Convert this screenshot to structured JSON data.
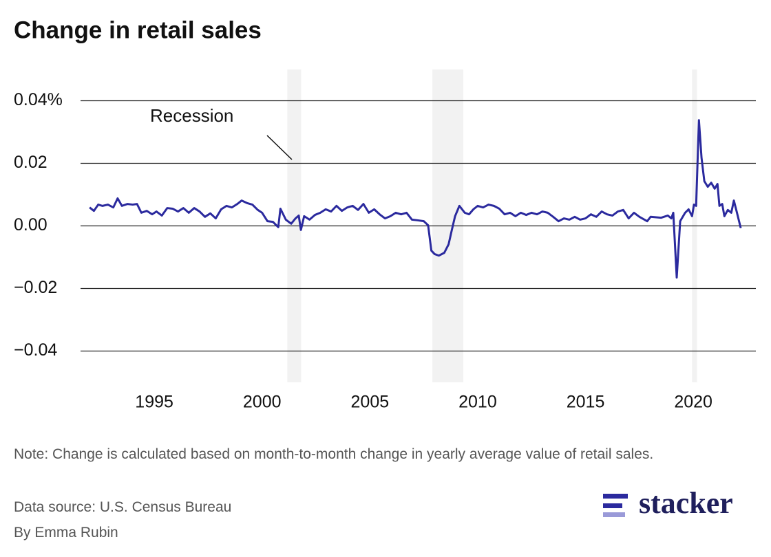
{
  "chart_data": {
    "type": "line",
    "title": "Change in retail sales",
    "annotation": "Recession",
    "recessions": [
      [
        2001.17,
        2001.81
      ],
      [
        2007.9,
        2009.33
      ],
      [
        2019.94,
        2020.17
      ]
    ],
    "recession_color": "#f2f2f2",
    "x": [
      1992.0,
      1992.2,
      1992.4,
      1992.6,
      1992.85,
      1993.1,
      1993.3,
      1993.5,
      1993.75,
      1994.0,
      1994.2,
      1994.4,
      1994.65,
      1994.9,
      1995.1,
      1995.35,
      1995.6,
      1995.85,
      1996.1,
      1996.35,
      1996.6,
      1996.85,
      1997.1,
      1997.35,
      1997.6,
      1997.85,
      1998.1,
      1998.35,
      1998.6,
      1998.85,
      1999.05,
      1999.3,
      1999.55,
      1999.8,
      2000.0,
      2000.25,
      2000.5,
      2000.75,
      2000.85,
      2001.1,
      2001.35,
      2001.55,
      2001.7,
      2001.8,
      2001.95,
      2002.2,
      2002.45,
      2002.7,
      2002.95,
      2003.2,
      2003.45,
      2003.7,
      2003.95,
      2004.2,
      2004.45,
      2004.7,
      2004.95,
      2005.2,
      2005.45,
      2005.7,
      2005.95,
      2006.2,
      2006.45,
      2006.7,
      2006.95,
      2007.2,
      2007.5,
      2007.7,
      2007.85,
      2008.0,
      2008.2,
      2008.45,
      2008.65,
      2008.8,
      2008.95,
      2009.15,
      2009.4,
      2009.6,
      2009.8,
      2010.0,
      2010.25,
      2010.5,
      2010.75,
      2011.0,
      2011.25,
      2011.5,
      2011.75,
      2012.0,
      2012.25,
      2012.5,
      2012.75,
      2013.0,
      2013.25,
      2013.5,
      2013.75,
      2014.0,
      2014.25,
      2014.5,
      2014.75,
      2015.0,
      2015.25,
      2015.5,
      2015.75,
      2016.0,
      2016.25,
      2016.5,
      2016.75,
      2017.0,
      2017.25,
      2017.5,
      2017.86,
      2018.02,
      2018.5,
      2018.82,
      2018.98,
      2019.07,
      2019.23,
      2019.39,
      2019.62,
      2019.78,
      2019.94,
      2020.03,
      2020.13,
      2020.26,
      2020.38,
      2020.51,
      2020.67,
      2020.83,
      2020.99,
      2021.12,
      2021.21,
      2021.34,
      2021.44,
      2021.6,
      2021.76,
      2021.88,
      2022.01,
      2022.2
    ],
    "series": [
      {
        "color": "#2b2a9e",
        "values": [
          0.0059,
          0.0048,
          0.0068,
          0.0064,
          0.0068,
          0.0059,
          0.0088,
          0.0064,
          0.007,
          0.0068,
          0.007,
          0.0042,
          0.0048,
          0.0037,
          0.0046,
          0.0033,
          0.0057,
          0.0055,
          0.0046,
          0.0057,
          0.0042,
          0.0057,
          0.0046,
          0.0029,
          0.004,
          0.0024,
          0.0053,
          0.0064,
          0.0059,
          0.007,
          0.0081,
          0.0073,
          0.0068,
          0.0051,
          0.0042,
          0.0015,
          0.0013,
          -0.0004,
          0.0055,
          0.002,
          0.0007,
          0.0024,
          0.0033,
          -0.0013,
          0.0031,
          0.002,
          0.0035,
          0.0042,
          0.0053,
          0.0046,
          0.0064,
          0.0048,
          0.0059,
          0.0064,
          0.0051,
          0.007,
          0.0042,
          0.0053,
          0.0037,
          0.0024,
          0.0031,
          0.0042,
          0.0037,
          0.0042,
          0.002,
          0.0018,
          0.0015,
          0.0002,
          -0.0079,
          -0.009,
          -0.0095,
          -0.0086,
          -0.0059,
          -0.0013,
          0.0031,
          0.0064,
          0.0042,
          0.0037,
          0.0053,
          0.0064,
          0.0059,
          0.0068,
          0.0064,
          0.0055,
          0.0037,
          0.0042,
          0.0031,
          0.0042,
          0.0035,
          0.0042,
          0.0037,
          0.0046,
          0.0042,
          0.0029,
          0.0015,
          0.0024,
          0.002,
          0.0029,
          0.002,
          0.0024,
          0.0037,
          0.0029,
          0.0046,
          0.0037,
          0.0033,
          0.0046,
          0.0051,
          0.0024,
          0.0042,
          0.0029,
          0.0015,
          0.0029,
          0.0026,
          0.0033,
          0.0024,
          0.0042,
          -0.0165,
          0.0015,
          0.0042,
          0.0053,
          0.0031,
          0.0068,
          0.0064,
          0.0338,
          0.0218,
          0.0143,
          0.0125,
          0.0138,
          0.0119,
          0.0134,
          0.0064,
          0.007,
          0.0031,
          0.0051,
          0.0042,
          0.0081,
          0.0046,
          -0.0007
        ]
      }
    ],
    "xlim": [
      1991.58,
      2022.9
    ],
    "xticks": [
      1995,
      2000,
      2005,
      2010,
      2015,
      2020
    ],
    "ylim": [
      -0.05,
      0.05
    ],
    "yticks": [
      {
        "value": -0.04,
        "label": "−0.04"
      },
      {
        "value": -0.02,
        "label": "−0.02"
      },
      {
        "value": 0,
        "label": "0.00"
      },
      0.02,
      {
        "value": 0.04,
        "label": "0.04%"
      }
    ],
    "grid": true,
    "note": "Note: Change is calculated based on month-to-month change in yearly average value of retail sales.",
    "source": "Data source: U.S. Census Bureau",
    "byline": "By Emma Rubin",
    "logo": "stacker"
  }
}
